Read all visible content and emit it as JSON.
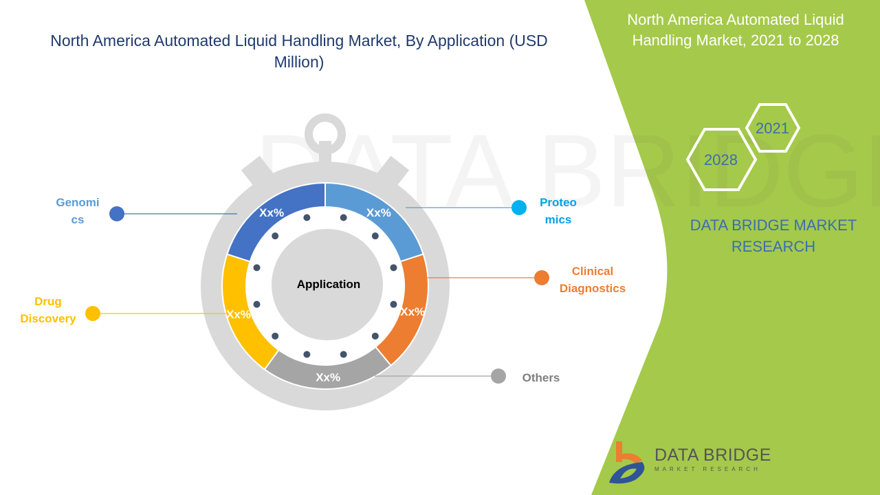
{
  "title": "North America Automated Liquid Handling Market, By Application (USD Million)",
  "side_panel": {
    "title": "North America Automated Liquid Handling Market, 2021 to 2028",
    "years": [
      "2021",
      "2028"
    ],
    "brand": "DATA BRIDGE MARKET RESEARCH",
    "panel_color": "#a5c94a"
  },
  "logo": {
    "name": "DATA BRIDGE",
    "tagline": "MARKET RESEARCH"
  },
  "chart_data": {
    "type": "pie",
    "style": "donut (stopwatch)",
    "center_label": "Application",
    "slices": [
      {
        "name": "Proteomics",
        "label": "Proteo\nmics",
        "value_label": "Xx%",
        "share": 20,
        "color": "#5b9bd5",
        "label_color": "#00a2e8"
      },
      {
        "name": "Clinical Diagnostics",
        "label": "Clinical\nDiagnostics",
        "value_label": "Xx%",
        "share": 19,
        "color": "#ed7d31",
        "label_color": "#ed7d31"
      },
      {
        "name": "Others",
        "label": "Others",
        "value_label": "Xx%",
        "share": 21,
        "color": "#a5a5a5",
        "label_color": "#7f7f7f"
      },
      {
        "name": "Drug Discovery",
        "label": "Drug\nDiscovery",
        "value_label": "Xx%",
        "share": 20,
        "color": "#ffc000",
        "label_color": "#ffc000"
      },
      {
        "name": "Genomics",
        "label": "Genomi\ncs",
        "value_label": "Xx%",
        "share": 20,
        "color": "#4472c4",
        "label_color": "#5b9bd5"
      }
    ]
  }
}
